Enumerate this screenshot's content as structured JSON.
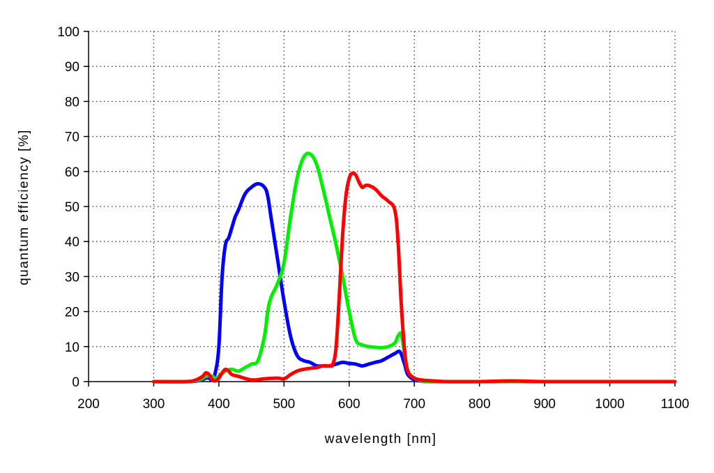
{
  "chart_data": {
    "type": "line",
    "title": "",
    "xlabel": "wavelength [nm]",
    "ylabel": "quantum efficiency [%]",
    "xlim": [
      200,
      1100
    ],
    "ylim": [
      0,
      100
    ],
    "xticks": [
      200,
      300,
      400,
      500,
      600,
      700,
      800,
      900,
      1000,
      1100
    ],
    "yticks": [
      0,
      10,
      20,
      30,
      40,
      50,
      60,
      70,
      80,
      90,
      100
    ],
    "grid": true,
    "legend": "none",
    "series": [
      {
        "color": "#0000ff",
        "x": [
          300,
          350,
          370,
          380,
          385,
          390,
          395,
          400,
          405,
          410,
          415,
          420,
          425,
          430,
          440,
          450,
          460,
          470,
          475,
          480,
          490,
          500,
          510,
          520,
          530,
          540,
          550,
          560,
          570,
          580,
          590,
          600,
          610,
          620,
          630,
          640,
          650,
          660,
          670,
          678,
          685,
          690,
          700,
          710,
          720,
          750,
          800,
          850,
          900,
          1000,
          1100
        ],
        "y": [
          0,
          0,
          0.3,
          1,
          1,
          0.5,
          3,
          10,
          30,
          39,
          41,
          44,
          47,
          49,
          53.5,
          55.5,
          56.5,
          55.5,
          53,
          47,
          35,
          23,
          13,
          7.5,
          6,
          5.5,
          4.5,
          4.5,
          4.5,
          5,
          5.5,
          5.2,
          5,
          4.5,
          5,
          5.5,
          6,
          7,
          8,
          8.5,
          5,
          2,
          0.5,
          0.2,
          0,
          0,
          0,
          0,
          0,
          0,
          0
        ]
      },
      {
        "color": "#00ee00",
        "x": [
          300,
          350,
          370,
          380,
          390,
          395,
          400,
          410,
          420,
          430,
          440,
          450,
          460,
          470,
          475,
          480,
          490,
          500,
          510,
          520,
          530,
          540,
          550,
          560,
          570,
          580,
          590,
          600,
          610,
          620,
          630,
          640,
          650,
          660,
          670,
          675,
          680,
          685,
          690,
          700,
          710,
          720,
          750,
          800,
          900,
          1000,
          1100
        ],
        "y": [
          0,
          0,
          0.5,
          1.5,
          1.5,
          0.8,
          1.5,
          3,
          3.5,
          3,
          4,
          5,
          6,
          13,
          20,
          24,
          28,
          34,
          47,
          58,
          64,
          65,
          62,
          55,
          47,
          39,
          30,
          20,
          12,
          10.5,
          10,
          9.8,
          9.7,
          10,
          11,
          13,
          13.5,
          8,
          3,
          1,
          0.3,
          0,
          0,
          0,
          0,
          0,
          0
        ]
      },
      {
        "color": "#ff0000",
        "x": [
          300,
          350,
          365,
          375,
          380,
          385,
          390,
          395,
          400,
          405,
          410,
          415,
          420,
          430,
          450,
          470,
          490,
          500,
          510,
          520,
          530,
          540,
          550,
          560,
          570,
          575,
          580,
          585,
          590,
          595,
          600,
          605,
          610,
          615,
          620,
          625,
          630,
          640,
          650,
          660,
          670,
          675,
          680,
          685,
          690,
          700,
          710,
          720,
          750,
          800,
          850,
          900,
          1000,
          1100
        ],
        "y": [
          0,
          0,
          0.5,
          1.5,
          2.5,
          2,
          0.5,
          0.2,
          1,
          2.5,
          3.5,
          3,
          2,
          1.5,
          0.5,
          0.8,
          1,
          0.8,
          2,
          3,
          3.5,
          3.8,
          4,
          4.5,
          4.5,
          5,
          10,
          25,
          42,
          53,
          58,
          59.5,
          59,
          57,
          55.5,
          56,
          56,
          55,
          53,
          51.5,
          49,
          40,
          22,
          9,
          3,
          1,
          0.5,
          0.3,
          0,
          0,
          0.2,
          0,
          0,
          0
        ]
      }
    ]
  }
}
